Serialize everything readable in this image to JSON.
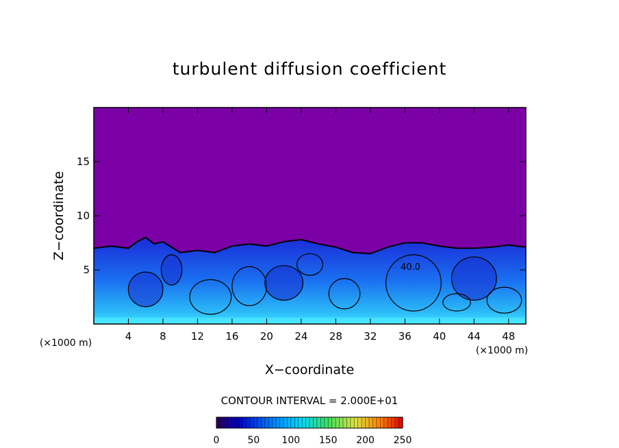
{
  "chart_data": {
    "type": "heatmap",
    "title": "turbulent diffusion coefficient",
    "xlabel": "X−coordinate",
    "ylabel": "Z−coordinate",
    "x_unit": "(×1000 m)",
    "x_unit_right": "(×1000 m)",
    "xlim": [
      0,
      50
    ],
    "ylim": [
      0,
      20
    ],
    "x_ticks": [
      4,
      8,
      12,
      16,
      20,
      24,
      28,
      32,
      36,
      40,
      44,
      48
    ],
    "y_ticks": [
      5,
      10,
      15
    ],
    "contour_label": "40.0",
    "contour_interval_text": "CONTOUR INTERVAL = 2.000E+01",
    "colorbar": {
      "min": 0,
      "max": 250,
      "ticks": [
        0,
        50,
        100,
        150,
        200,
        250
      ]
    },
    "background_color": "#7b00a6",
    "boundary_layer_top": [
      [
        0,
        7.0
      ],
      [
        2,
        7.2
      ],
      [
        4,
        7.0
      ],
      [
        5,
        7.6
      ],
      [
        6,
        8.0
      ],
      [
        7,
        7.4
      ],
      [
        8,
        7.6
      ],
      [
        10,
        6.6
      ],
      [
        12,
        6.8
      ],
      [
        14,
        6.6
      ],
      [
        16,
        7.2
      ],
      [
        18,
        7.4
      ],
      [
        20,
        7.2
      ],
      [
        22,
        7.6
      ],
      [
        24,
        7.8
      ],
      [
        26,
        7.4
      ],
      [
        28,
        7.1
      ],
      [
        30,
        6.6
      ],
      [
        32,
        6.5
      ],
      [
        34,
        7.1
      ],
      [
        36,
        7.5
      ],
      [
        38,
        7.5
      ],
      [
        40,
        7.2
      ],
      [
        42,
        7.0
      ],
      [
        44,
        7.0
      ],
      [
        46,
        7.1
      ],
      [
        48,
        7.3
      ],
      [
        50,
        7.1
      ]
    ]
  }
}
